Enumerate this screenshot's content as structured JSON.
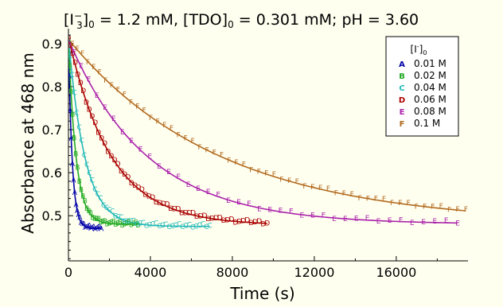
{
  "chart_data": {
    "type": "scatter",
    "title_parts": {
      "p1": "[I",
      "p1_sup": "−",
      "p1_sub": "3",
      "p2": "]",
      "p2_sub": "0",
      "p3": " = 1.2 mM, [TDO]",
      "p3_sub": "0",
      "p4": " = 0.301 mM; pH = 3.60"
    },
    "xlabel": "Time (s)",
    "ylabel": "Absorbance at 468 nm",
    "xlim": [
      0,
      19500
    ],
    "ylim": [
      0.395,
      0.935
    ],
    "xticks": [
      0,
      4000,
      8000,
      12000,
      16000
    ],
    "xtick_labels": [
      "0",
      "4000",
      "8000",
      "12000",
      "16000"
    ],
    "yticks": [
      0.5,
      0.6,
      0.7,
      0.8,
      0.9
    ],
    "ytick_labels": [
      "0.5",
      "0.6",
      "0.7",
      "0.8",
      "0.9"
    ],
    "legend": {
      "title_main": "[I",
      "title_sup": "-",
      "title_after": "]",
      "title_sub": "0",
      "placement": "top-right"
    },
    "series": [
      {
        "name": "0.01 M",
        "marker": "A",
        "color": "#0000aa",
        "A0": 0.91,
        "Ainf": 0.47,
        "k": 0.0055,
        "tmax": 1600,
        "n": 26
      },
      {
        "name": "0.02 M",
        "marker": "B",
        "color": "#22aa22",
        "A0": 0.91,
        "Ainf": 0.48,
        "k": 0.0027,
        "tmax": 3400,
        "n": 36
      },
      {
        "name": "0.04 M",
        "marker": "C",
        "color": "#22b8b8",
        "A0": 0.915,
        "Ainf": 0.475,
        "k": 0.00125,
        "tmax": 6900,
        "n": 48
      },
      {
        "name": "0.06 M",
        "marker": "D",
        "color": "#aa0000",
        "A0": 0.915,
        "Ainf": 0.478,
        "k": 0.00048,
        "tmax": 9700,
        "n": 58
      },
      {
        "name": "0.08 M",
        "marker": "E",
        "color": "#aa22aa",
        "A0": 0.91,
        "Ainf": 0.48,
        "k": 0.00026,
        "tmax": 19000,
        "n": 40
      },
      {
        "name": "0.1 M",
        "marker": "F",
        "color": "#b26a1e",
        "A0": 0.91,
        "Ainf": 0.48,
        "k": 0.000135,
        "tmax": 19400,
        "n": 56
      }
    ]
  }
}
